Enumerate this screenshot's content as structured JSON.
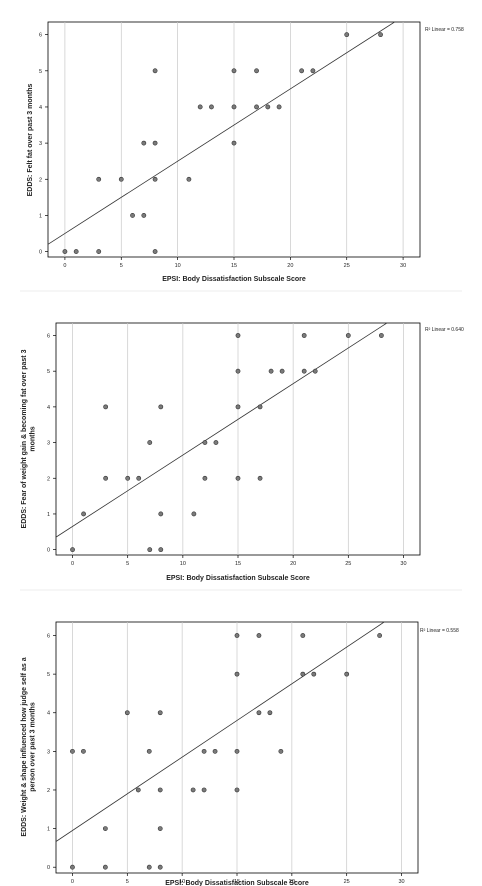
{
  "chart_data": [
    {
      "type": "scatter",
      "xlabel": "EPSI: Body Dissatisfaction Subscale Score",
      "ylabel": [
        "EDDS: Felt fat over past 3 months"
      ],
      "xlim": [
        -1.5,
        31.5
      ],
      "ylim": [
        -0.15,
        6.35
      ],
      "xticks": [
        0,
        5,
        10,
        15,
        20,
        25,
        30
      ],
      "yticks": [
        0,
        1,
        2,
        3,
        4,
        5,
        6
      ],
      "grid": "vertical",
      "fit": {
        "label": "R² Linear = 0.758",
        "intercept": 0.5,
        "slope": 0.2
      },
      "points": [
        [
          0,
          0
        ],
        [
          1,
          0
        ],
        [
          3,
          0
        ],
        [
          8,
          0
        ],
        [
          6,
          1
        ],
        [
          7,
          1
        ],
        [
          3,
          2
        ],
        [
          5,
          2
        ],
        [
          8,
          2
        ],
        [
          11,
          2
        ],
        [
          7,
          3
        ],
        [
          8,
          3
        ],
        [
          15,
          3
        ],
        [
          12,
          4
        ],
        [
          13,
          4
        ],
        [
          15,
          4
        ],
        [
          17,
          4
        ],
        [
          18,
          4
        ],
        [
          19,
          4
        ],
        [
          8,
          5
        ],
        [
          15,
          5
        ],
        [
          17,
          5
        ],
        [
          21,
          5
        ],
        [
          22,
          5
        ],
        [
          25,
          6
        ],
        [
          28,
          6
        ]
      ]
    },
    {
      "type": "scatter",
      "xlabel": "EPSI: Body Dissatisfaction Subscale Score",
      "ylabel": [
        "EDDS: Fear of weight gain & becoming fat over past 3",
        "months"
      ],
      "xlim": [
        -1.5,
        31.5
      ],
      "ylim": [
        -0.15,
        6.35
      ],
      "xticks": [
        0,
        5,
        10,
        15,
        20,
        25,
        30
      ],
      "yticks": [
        0,
        1,
        2,
        3,
        4,
        5,
        6
      ],
      "grid": "vertical",
      "fit": {
        "label": "R² Linear = 0.640",
        "intercept": 0.65,
        "slope": 0.2
      },
      "points": [
        [
          0,
          0
        ],
        [
          7,
          0
        ],
        [
          8,
          0
        ],
        [
          1,
          1
        ],
        [
          8,
          1
        ],
        [
          11,
          1
        ],
        [
          3,
          2
        ],
        [
          5,
          2
        ],
        [
          6,
          2
        ],
        [
          12,
          2
        ],
        [
          15,
          2
        ],
        [
          17,
          2
        ],
        [
          7,
          3
        ],
        [
          12,
          3
        ],
        [
          13,
          3
        ],
        [
          3,
          4
        ],
        [
          8,
          4
        ],
        [
          15,
          4
        ],
        [
          17,
          4
        ],
        [
          15,
          5
        ],
        [
          18,
          5
        ],
        [
          19,
          5
        ],
        [
          21,
          5
        ],
        [
          22,
          5
        ],
        [
          15,
          6
        ],
        [
          21,
          6
        ],
        [
          25,
          6
        ],
        [
          28,
          6
        ]
      ]
    },
    {
      "type": "scatter",
      "xlabel": "EPSI: Body Dissatisfaction Subscale Score",
      "ylabel": [
        "EDDS: Weight & shape influenced how judge self as a",
        "person over past 3 months"
      ],
      "xlim": [
        -1.5,
        31.5
      ],
      "ylim": [
        -0.15,
        6.35
      ],
      "xticks": [
        0,
        5,
        10,
        15,
        20,
        25,
        30
      ],
      "yticks": [
        0,
        1,
        2,
        3,
        4,
        5,
        6
      ],
      "grid": "vertical",
      "fit": {
        "label": "R² Linear = 0.558",
        "intercept": 0.95,
        "slope": 0.19
      },
      "points": [
        [
          0,
          0
        ],
        [
          3,
          0
        ],
        [
          7,
          0
        ],
        [
          8,
          0
        ],
        [
          3,
          1
        ],
        [
          8,
          1
        ],
        [
          6,
          2
        ],
        [
          8,
          2
        ],
        [
          11,
          2
        ],
        [
          12,
          2
        ],
        [
          15,
          2
        ],
        [
          0,
          3
        ],
        [
          1,
          3
        ],
        [
          7,
          3
        ],
        [
          12,
          3
        ],
        [
          13,
          3
        ],
        [
          15,
          3
        ],
        [
          19,
          3
        ],
        [
          5,
          4
        ],
        [
          8,
          4
        ],
        [
          17,
          4
        ],
        [
          18,
          4
        ],
        [
          15,
          5
        ],
        [
          21,
          5
        ],
        [
          22,
          5
        ],
        [
          25,
          5
        ],
        [
          15,
          6
        ],
        [
          17,
          6
        ],
        [
          21,
          6
        ],
        [
          28,
          6
        ]
      ]
    }
  ]
}
